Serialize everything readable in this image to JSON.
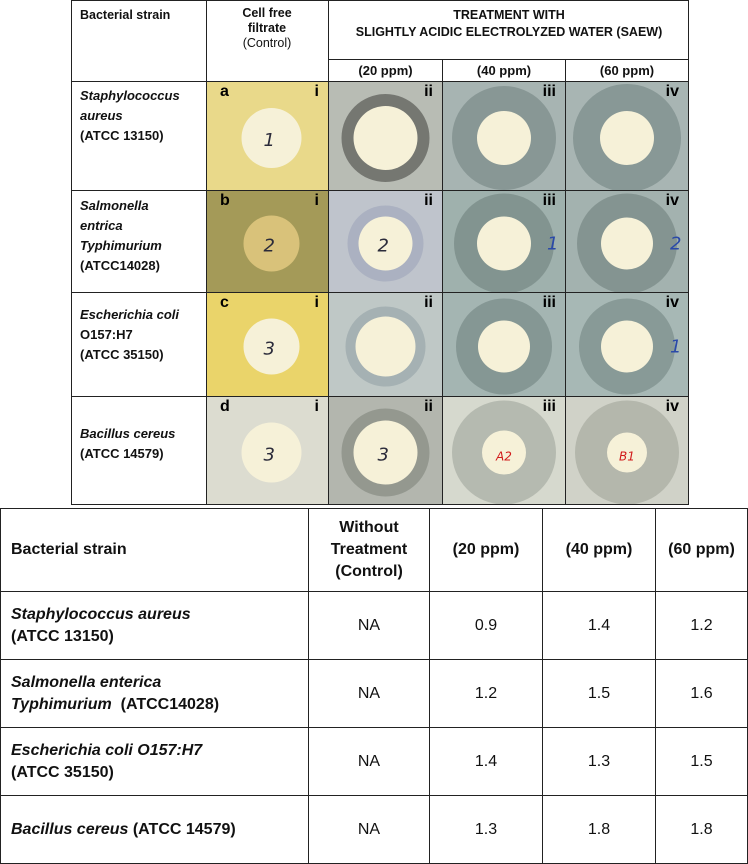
{
  "figure": {
    "header": {
      "strain": "Bacterial strain",
      "control_line1": "Cell free",
      "control_line2": "filtrate",
      "control_line3": "(Control)",
      "treatment_line1": "TREATMENT WITH",
      "treatment_line2": "SLIGHTLY ACIDIC ELECTROLYZED WATER (SAEW)",
      "conc_20": "(20 ppm)",
      "conc_40": "(40 ppm)",
      "conc_60": "(60 ppm)"
    },
    "rows": [
      {
        "name_italic_1": "Staphylococcus",
        "name_italic_2": "aureus",
        "name_plain_3": "(ATCC 13150)",
        "name_plain_4": "",
        "letter": "a"
      },
      {
        "name_italic_1": "Salmonella",
        "name_italic_2": "entrica",
        "name_plain_3": "Typhimurium",
        "name_plain_4": "(ATCC14028)",
        "letter": "b"
      },
      {
        "name_italic_1": "Escherichia coli",
        "name_italic_2": "O157:H7",
        "name_plain_3": "(ATCC 35150)",
        "name_plain_4": "",
        "letter": "c"
      },
      {
        "name_italic_1": "Bacillus cereus",
        "name_italic_2": "",
        "name_plain_3": "(ATCC 14579)",
        "name_plain_4": "",
        "letter": "d"
      }
    ],
    "roman": [
      "i",
      "ii",
      "iii",
      "iv"
    ],
    "disc_marks": [
      [
        "1",
        "",
        "",
        ""
      ],
      [
        "2",
        "2",
        "1",
        "2"
      ],
      [
        "3",
        "",
        "",
        "1"
      ],
      [
        "3",
        "3",
        "A2",
        "B1"
      ]
    ],
    "colors": {
      "control_plate": "#e3d27a",
      "saew_plate": "#a9b8b4",
      "disc": "#f6f1d8",
      "ink_blue": "#2a49a8",
      "ink_red": "#d11a1a"
    }
  },
  "table": {
    "headers": {
      "strain": "Bacterial strain",
      "control_line1": "Without",
      "control_line2": "Treatment",
      "control_line3": "(Control)",
      "c20": "(20 ppm)",
      "c40": "(40 ppm)",
      "c60": "(60 ppm)"
    },
    "rows": [
      {
        "strain_italic": "Staphylococcus aureus",
        "strain_rest": "",
        "strain_line2": "(ATCC 13150)",
        "control": "NA",
        "v20": "0.9",
        "v40": "1.4",
        "v60": "1.2"
      },
      {
        "strain_italic": "Salmonella enterica",
        "strain_rest": "",
        "strain_line2": "Typhimurium  (ATCC14028)",
        "control": "NA",
        "v20": "1.2",
        "v40": "1.5",
        "v60": "1.6"
      },
      {
        "strain_italic": "Escherichia coli O157:H7",
        "strain_rest": "",
        "strain_line2": "(ATCC 35150)",
        "control": "NA",
        "v20": "1.4",
        "v40": "1.3",
        "v60": "1.5"
      },
      {
        "strain_italic": "Bacillus cereus",
        "strain_rest": " (ATCC 14579)",
        "strain_line2": "",
        "control": "NA",
        "v20": "1.3",
        "v40": "1.8",
        "v60": "1.8"
      }
    ]
  }
}
